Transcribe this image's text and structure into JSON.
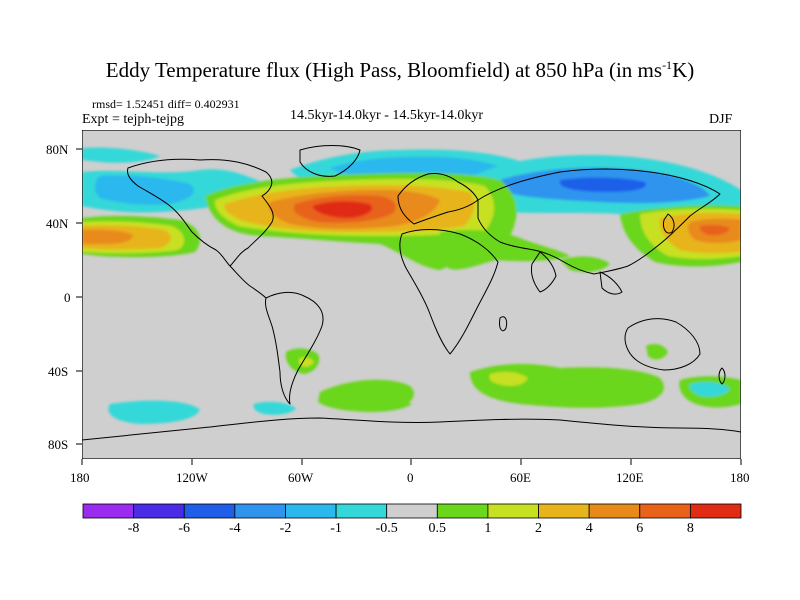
{
  "title": {
    "main": "Eddy Temperature flux (High Pass, Bloomfield) at 850 hPa (in ms",
    "unit_exp": "-1",
    "unit_end": "K)"
  },
  "info": {
    "stats": "rmsd= 1.52451 diff= 0.402931",
    "expt": "Expt = tejph-tejpg",
    "period": "14.5kyr-14.0kyr - 14.5kyr-14.0kyr",
    "season": "DJF"
  },
  "axes": {
    "x_ticks": [
      "180",
      "120W",
      "60W",
      "0",
      "60E",
      "120E",
      "180"
    ],
    "y_ticks": [
      "80N",
      "40N",
      "0",
      "40S",
      "80S"
    ]
  },
  "colorbar": {
    "labels": [
      "-8",
      "-6",
      "-4",
      "-2",
      "-1",
      "-0.5",
      "0.5",
      "1",
      "2",
      "4",
      "6",
      "8"
    ],
    "colors": [
      "#9a2cf0",
      "#4a2ce6",
      "#1f5ee8",
      "#2f94ee",
      "#2bb8ee",
      "#34d8d8",
      "#cfcfcf",
      "#6ad61c",
      "#c8e022",
      "#e8b41c",
      "#e88a1a",
      "#e8621a",
      "#e02c14"
    ]
  },
  "map": {
    "type": "filled-contour",
    "projection": "cylindrical-equidistant",
    "lon_range": [
      -180,
      180
    ],
    "lat_range": [
      -90,
      90
    ],
    "background_color": "#cfcfcf",
    "coastline_color": "#000000"
  }
}
